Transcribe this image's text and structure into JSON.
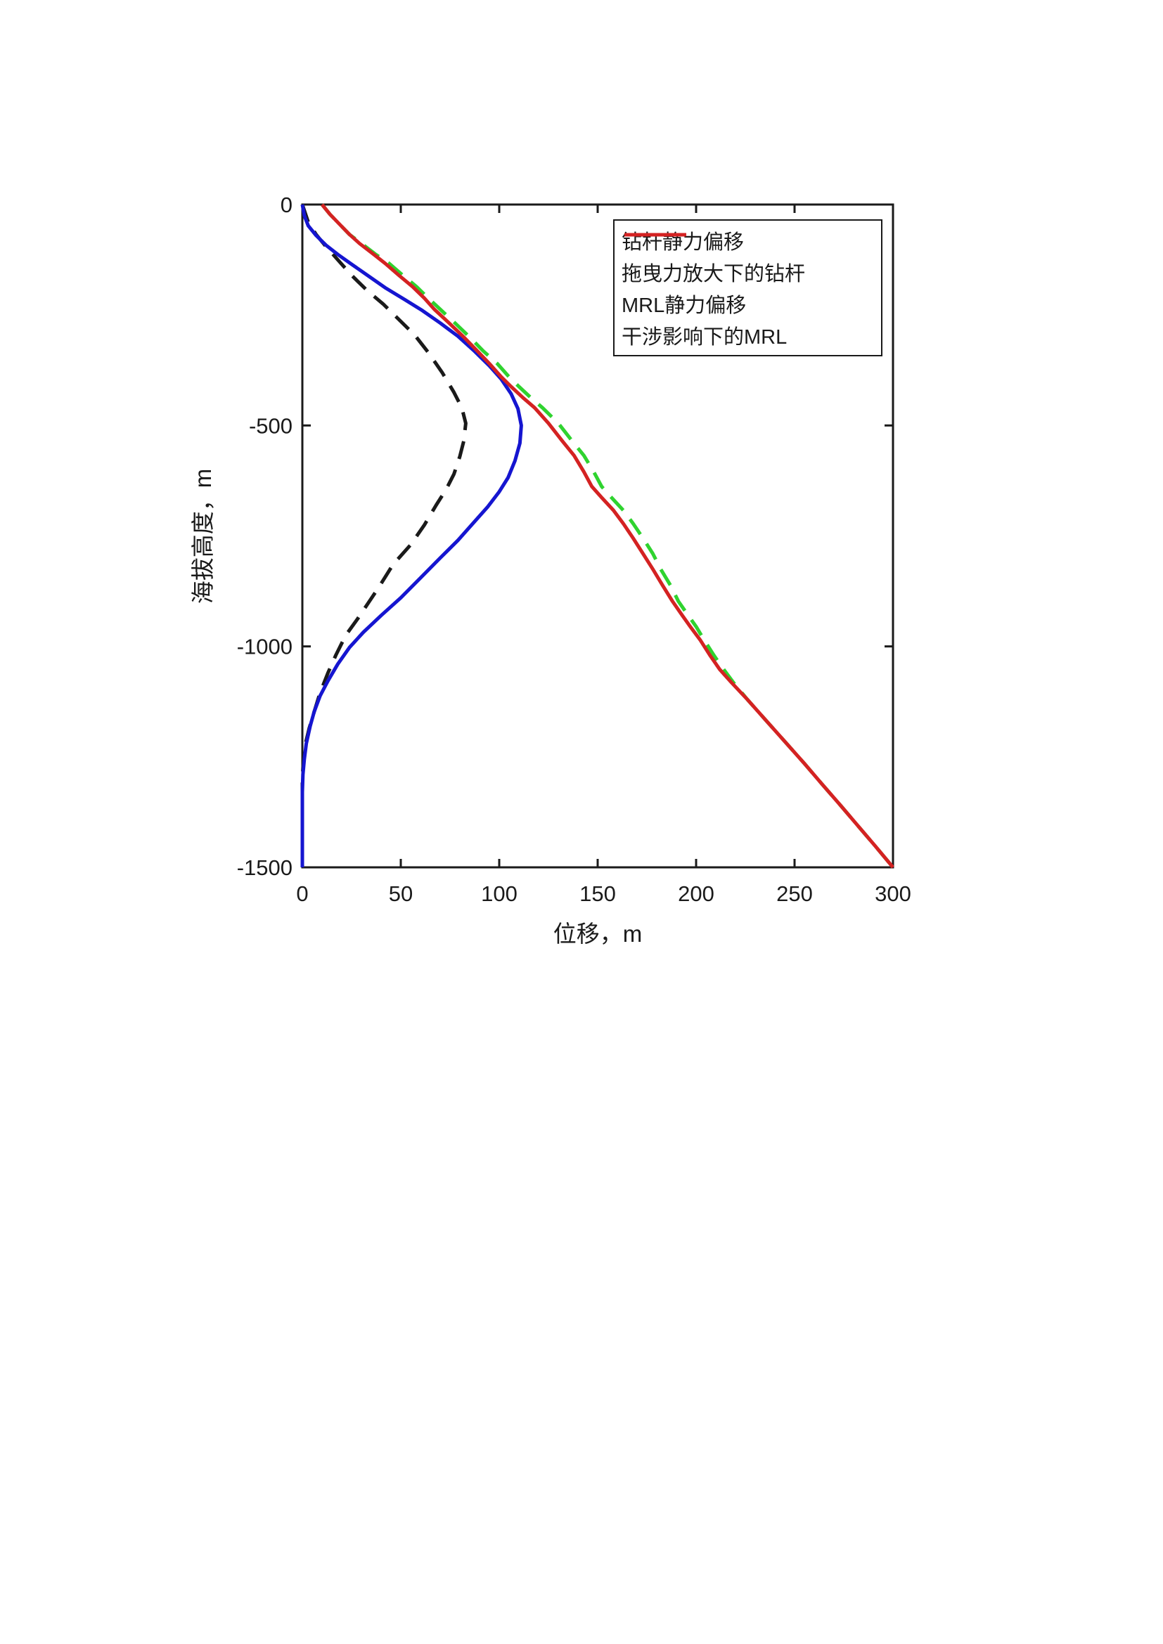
{
  "chart_data": {
    "type": "line",
    "title": "",
    "xlabel": "位移，m",
    "ylabel": "海拔高度，m",
    "xlim": [
      0,
      300
    ],
    "ylim": [
      -1500,
      0
    ],
    "x_ticks": [
      0,
      50,
      100,
      150,
      200,
      250,
      300
    ],
    "x_tick_labels": [
      "0",
      "50",
      "100",
      "150",
      "200",
      "250",
      "300"
    ],
    "y_ticks": [
      0,
      -500,
      -1000,
      -1500
    ],
    "y_tick_labels": [
      "0",
      "-500",
      "-1000",
      "-1500"
    ],
    "grid": "off",
    "legend_position": "upper right",
    "series": [
      {
        "name": "钻杆静力偏移",
        "color": "#1a1a1a",
        "style": "dashed",
        "points": [
          [
            0,
            0
          ],
          [
            3,
            -40
          ],
          [
            7,
            -68
          ],
          [
            12,
            -95
          ],
          [
            18,
            -125
          ],
          [
            25,
            -160
          ],
          [
            33,
            -195
          ],
          [
            41,
            -225
          ],
          [
            49,
            -260
          ],
          [
            57,
            -295
          ],
          [
            64,
            -335
          ],
          [
            71,
            -380
          ],
          [
            77,
            -425
          ],
          [
            81,
            -460
          ],
          [
            83,
            -495
          ],
          [
            82,
            -535
          ],
          [
            80,
            -570
          ],
          [
            77,
            -610
          ],
          [
            73,
            -645
          ],
          [
            68,
            -680
          ],
          [
            62,
            -725
          ],
          [
            55,
            -770
          ],
          [
            46,
            -815
          ],
          [
            39,
            -865
          ],
          [
            33,
            -905
          ],
          [
            28,
            -938
          ],
          [
            22,
            -975
          ],
          [
            17,
            -1020
          ],
          [
            13,
            -1060
          ],
          [
            9,
            -1105
          ],
          [
            6,
            -1148
          ],
          [
            3.5,
            -1185
          ],
          [
            1.5,
            -1222
          ],
          [
            0.5,
            -1260
          ],
          [
            0,
            -1300
          ],
          [
            0,
            -1500
          ]
        ]
      },
      {
        "name": "拖曳力放大下的钻杆",
        "color": "#1515d0",
        "style": "solid",
        "points": [
          [
            0,
            0
          ],
          [
            1,
            -25
          ],
          [
            3,
            -48
          ],
          [
            7,
            -70
          ],
          [
            12,
            -92
          ],
          [
            18,
            -113
          ],
          [
            25,
            -135
          ],
          [
            33,
            -160
          ],
          [
            42,
            -188
          ],
          [
            52,
            -215
          ],
          [
            61,
            -240
          ],
          [
            70,
            -268
          ],
          [
            79,
            -298
          ],
          [
            87,
            -330
          ],
          [
            95,
            -365
          ],
          [
            101,
            -395
          ],
          [
            106,
            -428
          ],
          [
            109.5,
            -462
          ],
          [
            111.2,
            -500
          ],
          [
            110.5,
            -540
          ],
          [
            108,
            -580
          ],
          [
            104.5,
            -618
          ],
          [
            100,
            -650
          ],
          [
            94,
            -685
          ],
          [
            87,
            -720
          ],
          [
            79,
            -760
          ],
          [
            70,
            -800
          ],
          [
            60,
            -845
          ],
          [
            50,
            -890
          ],
          [
            40,
            -930
          ],
          [
            31,
            -968
          ],
          [
            24,
            -1002
          ],
          [
            18,
            -1040
          ],
          [
            13,
            -1078
          ],
          [
            9,
            -1112
          ],
          [
            6,
            -1148
          ],
          [
            4,
            -1180
          ],
          [
            2,
            -1220
          ],
          [
            1,
            -1255
          ],
          [
            0.3,
            -1290
          ],
          [
            0,
            -1330
          ],
          [
            0,
            -1500
          ]
        ]
      },
      {
        "name": "MRL静力偏移",
        "color": "#2fd32f",
        "style": "dashed",
        "points": [
          [
            10,
            0
          ],
          [
            14,
            -22
          ],
          [
            19,
            -45
          ],
          [
            24,
            -68
          ],
          [
            30,
            -88
          ],
          [
            37,
            -112
          ],
          [
            44,
            -133
          ],
          [
            51,
            -160
          ],
          [
            58,
            -186
          ],
          [
            64,
            -212
          ],
          [
            70,
            -237
          ],
          [
            77,
            -266
          ],
          [
            85,
            -300
          ],
          [
            92,
            -332
          ],
          [
            99,
            -360
          ],
          [
            105,
            -390
          ],
          [
            110,
            -412
          ],
          [
            116,
            -437
          ],
          [
            122,
            -460
          ],
          [
            130,
            -495
          ],
          [
            137,
            -535
          ],
          [
            143,
            -568
          ],
          [
            148,
            -605
          ],
          [
            152,
            -638
          ],
          [
            157,
            -663
          ],
          [
            163,
            -692
          ],
          [
            168,
            -722
          ],
          [
            173,
            -755
          ],
          [
            178,
            -790
          ],
          [
            182,
            -825
          ],
          [
            187,
            -862
          ],
          [
            191,
            -898
          ],
          [
            196,
            -930
          ],
          [
            200,
            -955
          ],
          [
            204,
            -985
          ],
          [
            209,
            -1020
          ],
          [
            214,
            -1052
          ],
          [
            219,
            -1082
          ],
          [
            226,
            -1120
          ],
          [
            235,
            -1165
          ],
          [
            245,
            -1215
          ],
          [
            255,
            -1265
          ],
          [
            264,
            -1312
          ],
          [
            273,
            -1358
          ],
          [
            282,
            -1405
          ],
          [
            291,
            -1452
          ],
          [
            300,
            -1500
          ]
        ]
      },
      {
        "name": "干涉影响下的MRL",
        "color": "#d42222",
        "style": "solid",
        "points": [
          [
            10,
            0
          ],
          [
            14,
            -22
          ],
          [
            19,
            -45
          ],
          [
            24,
            -68
          ],
          [
            29,
            -88
          ],
          [
            36,
            -112
          ],
          [
            42,
            -133
          ],
          [
            49,
            -160
          ],
          [
            56,
            -186
          ],
          [
            62,
            -212
          ],
          [
            67,
            -237
          ],
          [
            74,
            -266
          ],
          [
            82,
            -300
          ],
          [
            89,
            -332
          ],
          [
            95,
            -360
          ],
          [
            101,
            -390
          ],
          [
            106,
            -412
          ],
          [
            112,
            -437
          ],
          [
            118,
            -460
          ],
          [
            125,
            -495
          ],
          [
            132,
            -535
          ],
          [
            138,
            -568
          ],
          [
            143,
            -605
          ],
          [
            147,
            -638
          ],
          [
            152,
            -663
          ],
          [
            158,
            -692
          ],
          [
            163,
            -722
          ],
          [
            168,
            -755
          ],
          [
            173,
            -790
          ],
          [
            178,
            -825
          ],
          [
            183,
            -862
          ],
          [
            188,
            -898
          ],
          [
            193,
            -930
          ],
          [
            197,
            -955
          ],
          [
            202,
            -985
          ],
          [
            207,
            -1020
          ],
          [
            212,
            -1052
          ],
          [
            218,
            -1082
          ],
          [
            226,
            -1120
          ],
          [
            235,
            -1165
          ],
          [
            245,
            -1215
          ],
          [
            255,
            -1265
          ],
          [
            264,
            -1312
          ],
          [
            273,
            -1358
          ],
          [
            282,
            -1405
          ],
          [
            291,
            -1452
          ],
          [
            300,
            -1500
          ]
        ]
      }
    ]
  }
}
